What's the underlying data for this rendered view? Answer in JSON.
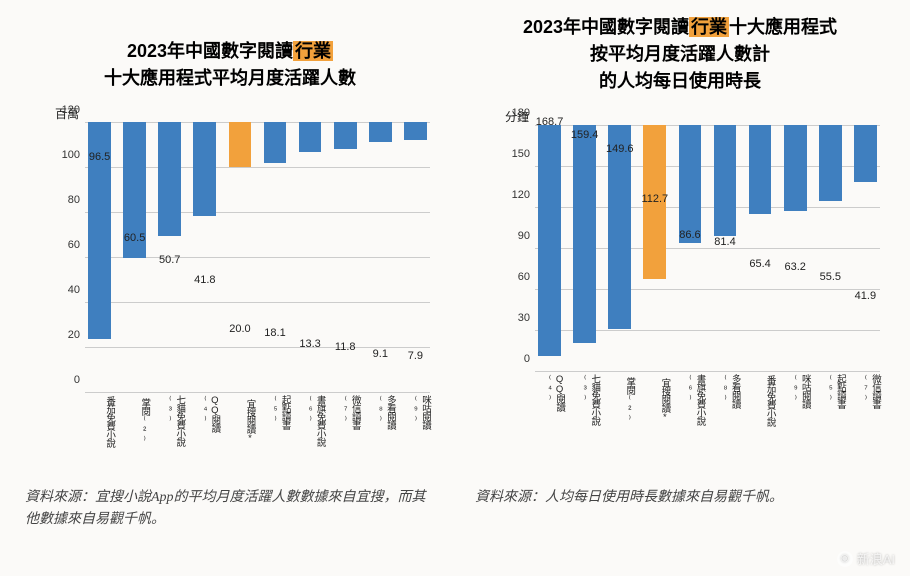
{
  "chart1": {
    "type": "bar",
    "title_line1_pre": "2023年中國數字閱讀",
    "title_line1_highlight": "行業",
    "title_line2": "十大應用程式平均月度活躍人數",
    "title_fontsize": 18,
    "y_unit_label": "百萬",
    "ylim": [
      0,
      120
    ],
    "yticks": [
      0,
      20,
      40,
      60,
      80,
      100,
      120
    ],
    "categories": [
      "番茄免費小說",
      "掌閱⁽²⁾",
      "七貓免費小說⁽³⁾",
      "QQ閱讀⁽⁴⁾",
      "宜搜閱讀*",
      "起點讀書⁽⁵⁾",
      "書旗免費小說⁽⁶⁾",
      "微信讀書⁽⁷⁾",
      "多看閱讀⁽⁸⁾",
      "咪咕閱讀⁽⁹⁾"
    ],
    "values": [
      96.5,
      60.5,
      50.7,
      41.8,
      20.0,
      18.1,
      13.3,
      11.8,
      9.1,
      7.9
    ],
    "highlight_index": 4,
    "bar_color": "#3f7fbf",
    "highlight_color": "#f2a13c",
    "value_fontsize": 11,
    "axis_fontsize": 11,
    "category_fontsize": 9.5,
    "background_color": "#fbfaf8",
    "grid_color": "#cccccc"
  },
  "chart2": {
    "type": "bar",
    "title_line1_pre": "2023年中國數字閱讀",
    "title_line1_highlight": "行業",
    "title_line1_post": "十大應用程式",
    "title_line2": "按平均月度活躍人數計",
    "title_line3": "的人均每日使用時長",
    "title_fontsize": 18,
    "y_unit_label": "分鐘",
    "ylim": [
      0,
      180
    ],
    "yticks": [
      0,
      30,
      60,
      90,
      120,
      150,
      180
    ],
    "categories": [
      "QQ閱讀⁽⁴⁾",
      "七貓免費小說⁽³⁾",
      "掌閱⁽²⁾",
      "宜搜閱讀*",
      "書旗免費小說⁽⁶⁾",
      "多看閱讀⁽⁸⁾",
      "番茄免費小說",
      "咪咕閱讀⁽⁹⁾",
      "起點讀書⁽⁵⁾",
      "微信讀書⁽⁷⁾"
    ],
    "values": [
      168.7,
      159.4,
      149.6,
      112.7,
      86.6,
      81.4,
      65.4,
      63.2,
      55.5,
      41.9
    ],
    "highlight_index": 3,
    "bar_color": "#3f7fbf",
    "highlight_color": "#f2a13c",
    "value_fontsize": 11,
    "axis_fontsize": 11,
    "category_fontsize": 9.5,
    "background_color": "#fbfaf8",
    "grid_color": "#cccccc"
  },
  "footnote1": "資料來源：宜搜小說App的平均月度活躍人數數據來自宜搜，而其他數據來自易觀千帆。",
  "footnote2": "資料來源：人均每日使用時長數據來自易觀千帆。",
  "watermark": "新浪AI"
}
